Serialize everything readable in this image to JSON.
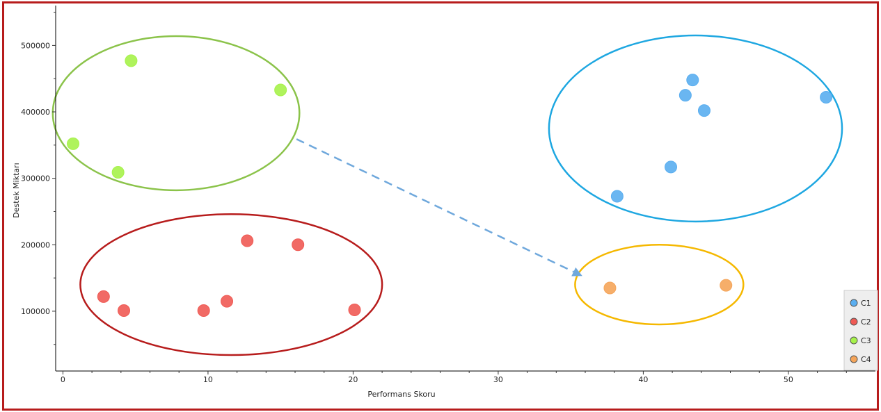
{
  "chart_data": {
    "type": "scatter",
    "xlabel": "Performans Skoru",
    "ylabel": "Destek Miktarı",
    "xlim": [
      -0.5,
      56
    ],
    "ylim": [
      10000,
      560000
    ],
    "x_ticks": [
      0,
      10,
      20,
      30,
      40,
      50
    ],
    "y_ticks": [
      100000,
      200000,
      300000,
      400000,
      500000
    ],
    "grid": false,
    "legend_position": "bottom-right",
    "series": [
      {
        "name": "C1",
        "color": "#5aaef0",
        "points": [
          [
            38.2,
            273000
          ],
          [
            41.9,
            317000
          ],
          [
            42.9,
            425000
          ],
          [
            43.4,
            448000
          ],
          [
            44.2,
            402000
          ],
          [
            52.6,
            422000
          ]
        ]
      },
      {
        "name": "C2",
        "color": "#ef5a54",
        "points": [
          [
            2.8,
            122000
          ],
          [
            4.2,
            101000
          ],
          [
            9.7,
            101000
          ],
          [
            11.3,
            115000
          ],
          [
            12.7,
            206000
          ],
          [
            16.2,
            200000
          ],
          [
            20.1,
            102000
          ]
        ]
      },
      {
        "name": "C3",
        "color": "#a6f24a",
        "points": [
          [
            0.7,
            352000
          ],
          [
            3.8,
            309000
          ],
          [
            4.7,
            477000
          ],
          [
            15.0,
            433000
          ]
        ]
      },
      {
        "name": "C4",
        "color": "#f5a55a",
        "points": [
          [
            37.7,
            135000
          ],
          [
            45.7,
            139000
          ]
        ]
      }
    ],
    "annotations": {
      "ellipses": [
        {
          "series": "C3",
          "color": "#8bc34a",
          "cx": 7.8,
          "cy": 398000,
          "rx": 8.5,
          "ry": 116000
        },
        {
          "series": "C2",
          "color": "#b71c1c",
          "cx": 11.6,
          "cy": 140000,
          "rx": 10.4,
          "ry": 106000
        },
        {
          "series": "C1",
          "color": "#1ea7e1",
          "cx": 43.6,
          "cy": 375000,
          "rx": 10.1,
          "ry": 140000
        },
        {
          "series": "C4",
          "color": "#f5b800",
          "cx": 41.1,
          "cy": 140000,
          "rx": 5.8,
          "ry": 60000
        }
      ],
      "arrow": {
        "from": [
          16.1,
          359000
        ],
        "to": [
          35.8,
          153000
        ],
        "color": "#6fa8dc",
        "style": "dashed"
      }
    }
  }
}
